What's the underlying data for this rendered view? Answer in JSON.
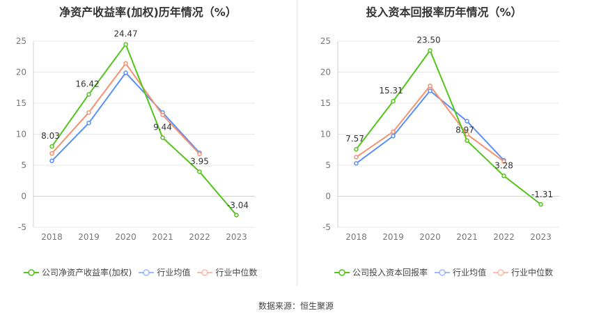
{
  "left": {
    "title": "净资产收益率(加权)历年情况（%）"
  },
  "right": {
    "title": "投入资本回报率历年情况（%）"
  },
  "source": "数据来源：恒生聚源",
  "chart_data": [
    {
      "type": "line",
      "title": "净资产收益率(加权)历年情况（%）",
      "categories": [
        "2018",
        "2019",
        "2020",
        "2021",
        "2022",
        "2023"
      ],
      "ylim": [
        -5,
        25
      ],
      "yticks": [
        -5,
        0,
        5,
        10,
        15,
        20,
        25
      ],
      "grid": true,
      "legend": "bottom",
      "series": [
        {
          "name": "公司净资产收益率(加权)",
          "values": [
            8.03,
            16.42,
            24.47,
            9.44,
            3.95,
            -3.04
          ],
          "color": "#52c41a",
          "labels": [
            "8.03",
            "16.42",
            "24.47",
            "9.44",
            "3.95",
            "-3.04"
          ]
        },
        {
          "name": "行业均值",
          "values": [
            5.7,
            11.8,
            19.9,
            13.5,
            7.0,
            null
          ],
          "color": "#5b8ff9"
        },
        {
          "name": "行业中位数",
          "values": [
            6.9,
            13.5,
            21.4,
            13.1,
            6.8,
            null
          ],
          "color": "#f6906d"
        }
      ]
    },
    {
      "type": "line",
      "title": "投入资本回报率历年情况（%）",
      "categories": [
        "2018",
        "2019",
        "2020",
        "2021",
        "2022",
        "2023"
      ],
      "ylim": [
        -5,
        25
      ],
      "yticks": [
        -5,
        0,
        5,
        10,
        15,
        20,
        25
      ],
      "grid": true,
      "legend": "bottom",
      "series": [
        {
          "name": "公司投入资本回报率",
          "values": [
            7.57,
            15.31,
            23.5,
            8.97,
            3.28,
            -1.31
          ],
          "color": "#52c41a",
          "labels": [
            "7.57",
            "15.31",
            "23.50",
            "8.97",
            "3.28",
            "-1.31"
          ]
        },
        {
          "name": "行业均值",
          "values": [
            5.3,
            9.7,
            17.0,
            12.1,
            5.8,
            null
          ],
          "color": "#5b8ff9"
        },
        {
          "name": "行业中位数",
          "values": [
            6.3,
            10.4,
            17.8,
            10.0,
            5.6,
            null
          ],
          "color": "#f6906d"
        }
      ]
    }
  ]
}
